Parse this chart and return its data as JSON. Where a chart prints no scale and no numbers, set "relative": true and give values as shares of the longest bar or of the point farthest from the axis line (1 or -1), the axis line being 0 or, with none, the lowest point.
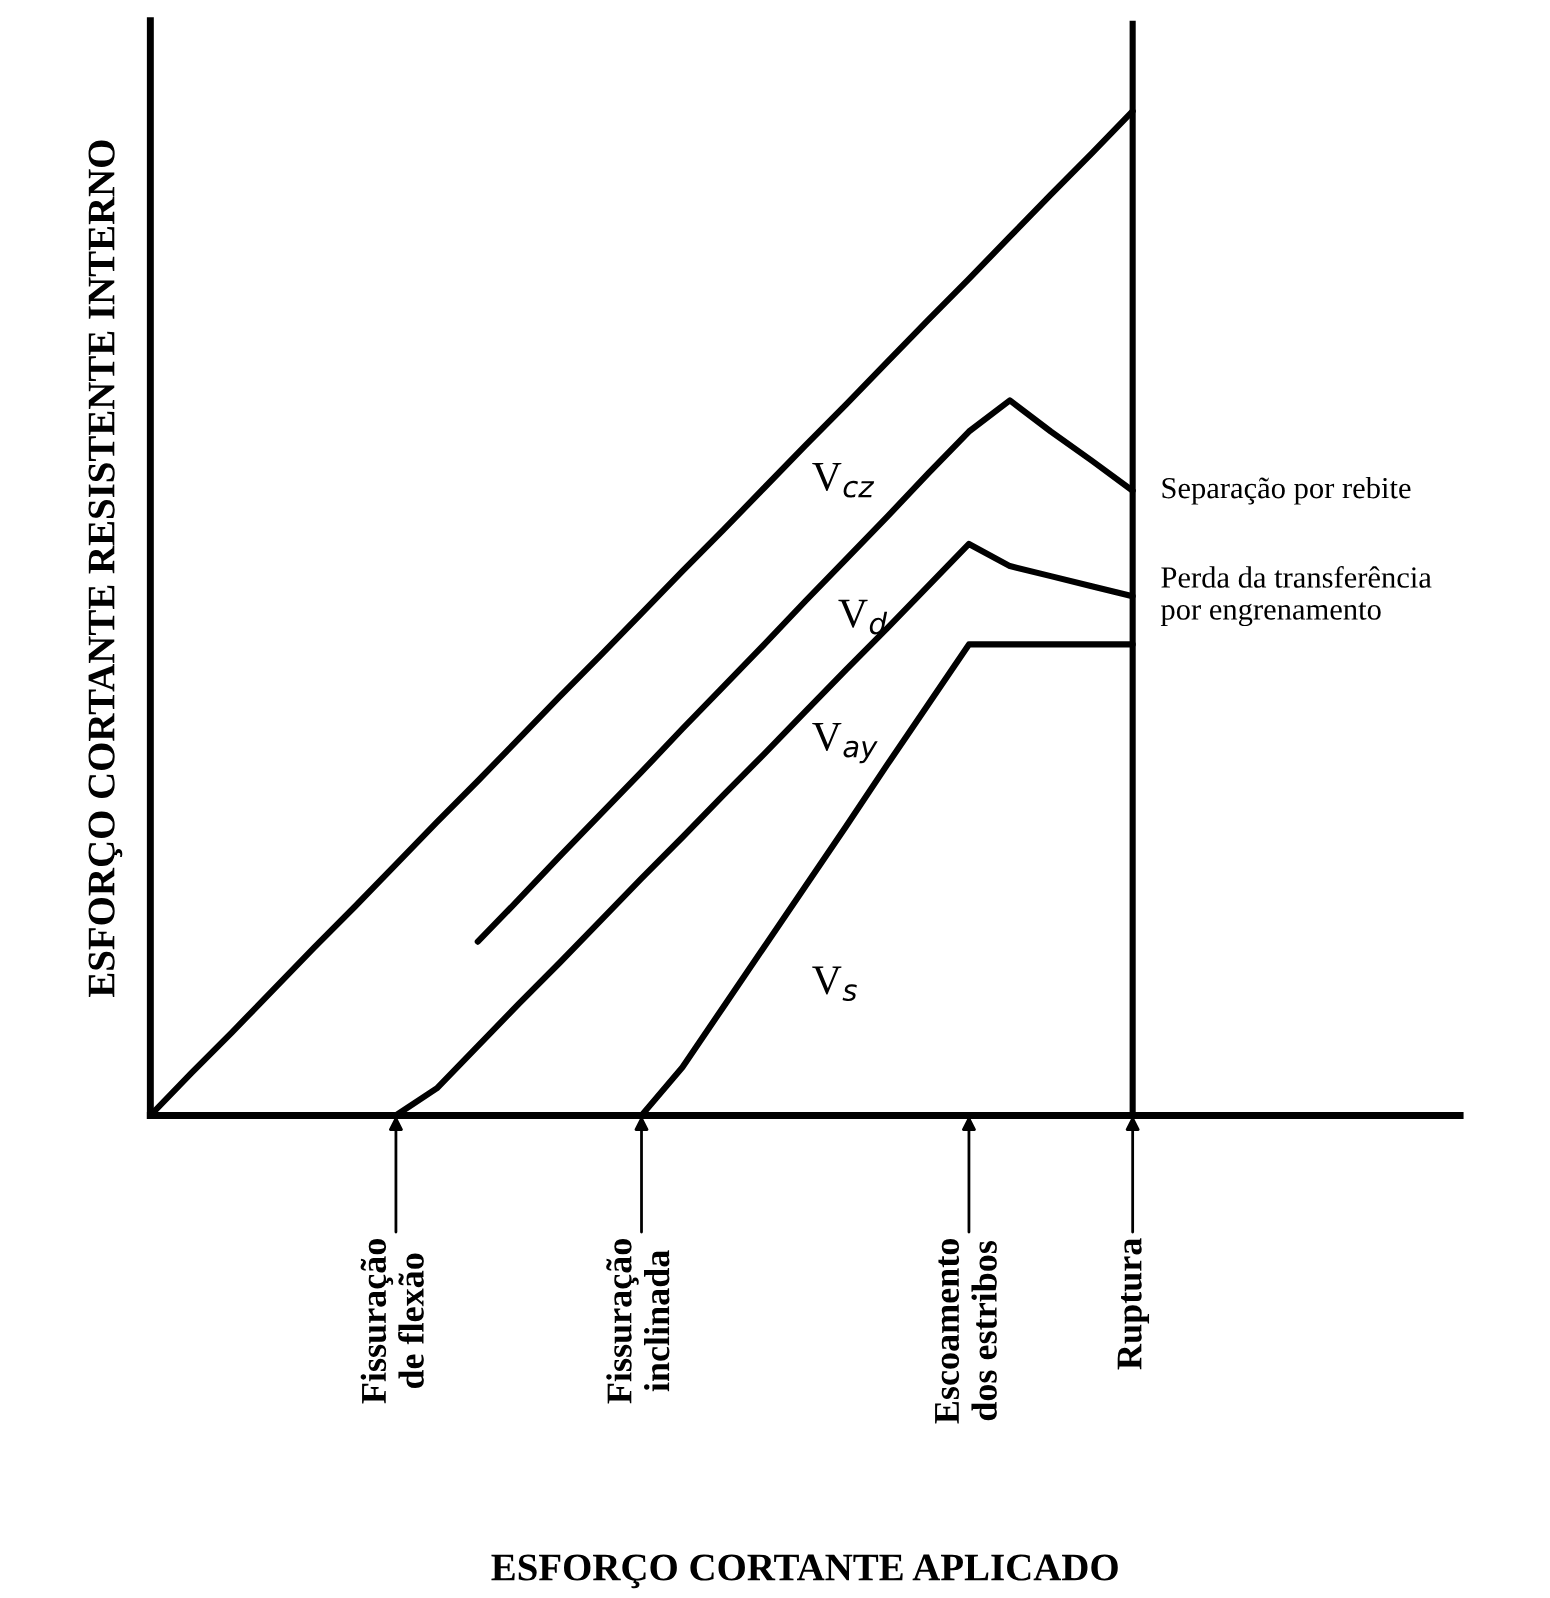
{
  "chart_data": {
    "type": "line",
    "relative": true,
    "xlabel": "ESFORÇO CORTANTE APLICADO",
    "ylabel": "ESFORÇO CORTANTE RESISTENTE INTERNO",
    "categories": [
      null,
      null,
      null,
      null,
      null,
      null,
      "Fissuração\nde flexão",
      null,
      null,
      null,
      null,
      null,
      "Fissuração\ninclinada",
      null,
      null,
      null,
      null,
      null,
      null,
      null,
      "Escoamento\ndos estribos",
      null,
      null,
      null,
      "Ruptura",
      null,
      null,
      null,
      null,
      null,
      null,
      null,
      null
    ],
    "series": [
      {
        "color": "#000000",
        "values": [
          0,
          0.042,
          0.083,
          0.125,
          0.167,
          0.208,
          0.25,
          0.292,
          0.333,
          0.375,
          0.417,
          0.458,
          0.5,
          0.542,
          0.583,
          0.625,
          0.667,
          0.708,
          0.75,
          0.792,
          0.833,
          0.875,
          0.917,
          0.958,
          1.0,
          null,
          null,
          null,
          null,
          null,
          null,
          null,
          null
        ]
      },
      {
        "color": "#000000",
        "values": [
          null,
          null,
          null,
          null,
          null,
          null,
          null,
          null,
          0.173,
          0.215,
          0.258,
          0.3,
          0.342,
          0.385,
          0.427,
          0.469,
          0.512,
          0.554,
          0.596,
          0.639,
          0.681,
          0.712,
          0.681,
          0.652,
          0.622,
          null,
          null,
          null,
          null,
          null,
          null,
          null,
          null
        ]
      },
      {
        "color": "#000000",
        "values": [
          null,
          null,
          null,
          null,
          null,
          null,
          0,
          0.027,
          0.069,
          0.111,
          0.152,
          0.194,
          0.236,
          0.277,
          0.319,
          0.36,
          0.402,
          0.444,
          0.485,
          0.527,
          0.569,
          0.547,
          0.537,
          0.527,
          0.517,
          null,
          null,
          null,
          null,
          null,
          null,
          null,
          null
        ]
      },
      {
        "color": "#000000",
        "values": [
          null,
          null,
          null,
          null,
          null,
          null,
          null,
          null,
          null,
          null,
          null,
          null,
          0,
          0.048,
          0.108,
          0.168,
          0.228,
          0.288,
          0.349,
          0.409,
          0.469,
          0.469,
          0.469,
          0.469,
          0.469,
          null,
          null,
          null,
          null,
          null,
          null,
          null,
          null
        ]
      }
    ],
    "ref_lines": [
      {
        "axis": "x",
        "value": "Ruptura",
        "color": "#000000"
      }
    ],
    "annotations": [
      {
        "text": "Separação por rebite",
        "x": "Ruptura",
        "y": 0.622
      },
      {
        "text": "Perda da transferência\npor engrenamento",
        "x": "Ruptura",
        "y": 0.517
      },
      "V$_{cz}$",
      "V$_{d}$",
      "V$_{ay}$",
      "V$_{s}$"
    ],
    "marker": "none",
    "line_style": "solid",
    "tick_labels": "x"
  }
}
